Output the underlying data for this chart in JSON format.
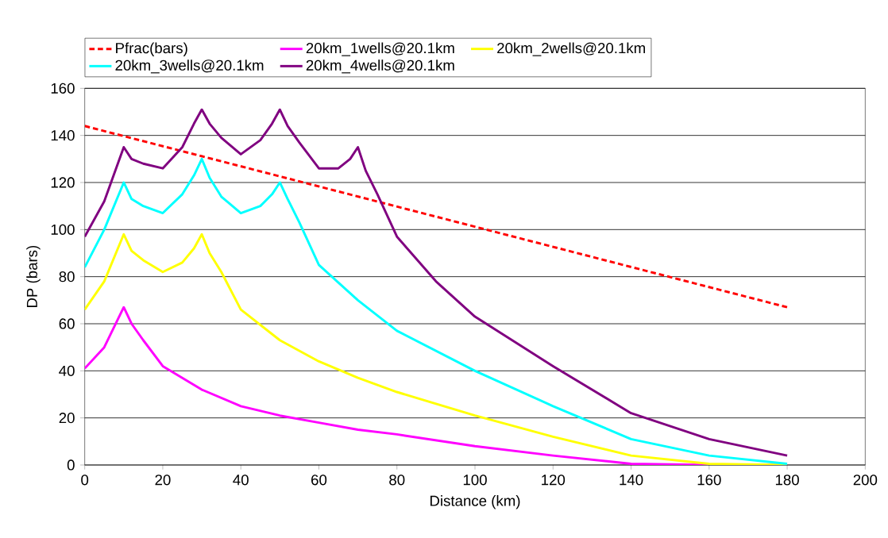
{
  "chart_data": {
    "type": "line",
    "xlabel": "Distance (km)",
    "ylabel": "DP (bars)",
    "xlim": [
      0,
      200
    ],
    "ylim": [
      0,
      160
    ],
    "xticks": [
      0,
      20,
      40,
      60,
      80,
      100,
      120,
      140,
      160,
      180,
      200
    ],
    "yticks": [
      0,
      20,
      40,
      60,
      80,
      100,
      120,
      140,
      160
    ],
    "grid": "y",
    "legend": "top",
    "marker": "none",
    "series": [
      {
        "name": "Pfrac(bars)",
        "color": "#ff0000",
        "line_style": "dashed",
        "x": [
          0,
          180
        ],
        "values": [
          144,
          67
        ]
      },
      {
        "name": "20km_1wells@20.1km",
        "color": "#ff00ff",
        "x": [
          0,
          5,
          10,
          12,
          15,
          20,
          30,
          40,
          50,
          60,
          70,
          80,
          100,
          120,
          140,
          160,
          180
        ],
        "values": [
          41,
          50,
          67,
          60,
          53,
          42,
          32,
          25,
          21,
          18,
          15,
          13,
          8,
          4,
          0.5,
          0,
          0
        ]
      },
      {
        "name": "20km_2wells@20.1km",
        "color": "#ffff00",
        "x": [
          0,
          5,
          10,
          12,
          15,
          20,
          25,
          28,
          30,
          32,
          35,
          40,
          50,
          60,
          70,
          80,
          100,
          120,
          140,
          160,
          180
        ],
        "values": [
          66,
          78,
          98,
          91,
          87,
          82,
          86,
          92,
          98,
          90,
          82,
          66,
          53,
          44,
          37,
          31,
          21,
          12,
          4,
          0.5,
          0
        ]
      },
      {
        "name": "20km_3wells@20.1km",
        "color": "#00ffff",
        "x": [
          0,
          5,
          10,
          12,
          15,
          20,
          25,
          28,
          30,
          32,
          35,
          40,
          45,
          48,
          50,
          52,
          55,
          60,
          70,
          80,
          100,
          120,
          140,
          160,
          180
        ],
        "values": [
          84,
          100,
          120,
          113,
          110,
          107,
          115,
          123,
          130,
          122,
          114,
          107,
          110,
          115,
          120,
          113,
          103,
          85,
          70,
          57,
          40,
          25,
          11,
          4,
          0.5
        ]
      },
      {
        "name": "20km_4wells@20.1km",
        "color": "#800080",
        "x": [
          0,
          5,
          10,
          12,
          15,
          20,
          25,
          28,
          30,
          32,
          35,
          40,
          45,
          48,
          50,
          52,
          55,
          60,
          65,
          68,
          70,
          72,
          75,
          80,
          90,
          100,
          120,
          140,
          160,
          180
        ],
        "values": [
          97,
          112,
          135,
          130,
          128,
          126,
          135,
          145,
          151,
          145,
          139,
          132,
          138,
          145,
          151,
          144,
          137,
          126,
          126,
          130,
          135,
          125,
          115,
          97,
          78,
          63,
          42,
          22,
          11,
          4
        ]
      }
    ]
  }
}
